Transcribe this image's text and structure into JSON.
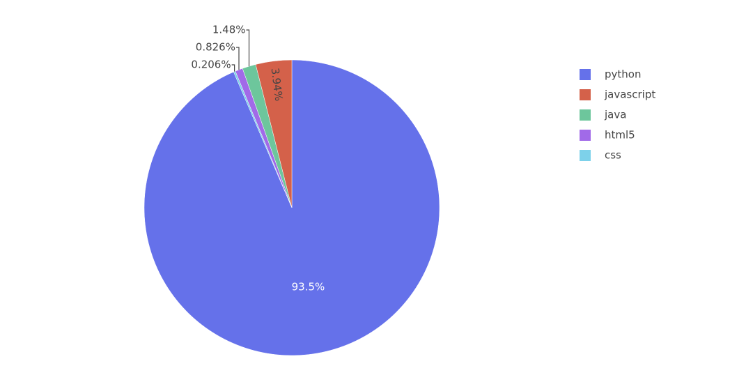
{
  "chart_data": {
    "type": "pie",
    "categories": [
      "python",
      "javascript",
      "java",
      "html5",
      "css"
    ],
    "values": [
      93.5,
      3.94,
      1.48,
      0.826,
      0.206
    ],
    "value_labels": [
      "93.5%",
      "3.94%",
      "1.48%",
      "0.826%",
      "0.206%"
    ],
    "colors": [
      "#6571ea",
      "#d4614a",
      "#6dc69c",
      "#a16ae8",
      "#7dd1ea"
    ],
    "legend": "top-right"
  }
}
